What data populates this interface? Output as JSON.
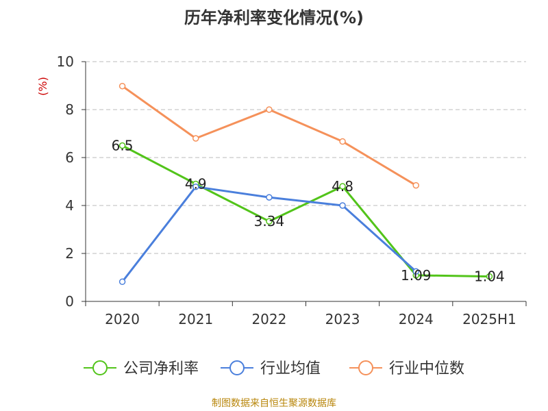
{
  "chart_data": {
    "type": "line",
    "title": "历年净利率变化情况(%)",
    "ylabel": "(%)",
    "xlabel": "",
    "categories": [
      "2020",
      "2021",
      "2022",
      "2023",
      "2024",
      "2025H1"
    ],
    "ylim": [
      0,
      10
    ],
    "yticks": [
      0,
      2,
      4,
      6,
      8,
      10
    ],
    "grid": true,
    "legend_position": "bottom",
    "series": [
      {
        "name": "公司净利率",
        "color": "#52c41a",
        "values": [
          6.5,
          4.9,
          3.34,
          4.8,
          1.09,
          1.04
        ],
        "labels": [
          "6.5",
          "4.9",
          "3.34",
          "4.8",
          "1.09",
          "1.04"
        ]
      },
      {
        "name": "行业均值",
        "color": "#4a7fdc",
        "values": [
          0.82,
          4.78,
          4.34,
          4.0,
          1.25,
          null
        ],
        "labels": []
      },
      {
        "name": "行业中位数",
        "color": "#f5915a",
        "values": [
          8.98,
          6.8,
          8.0,
          6.67,
          4.84,
          null
        ],
        "labels": []
      }
    ]
  },
  "footer": {
    "source": "制图数据来自恒生聚源数据库"
  }
}
